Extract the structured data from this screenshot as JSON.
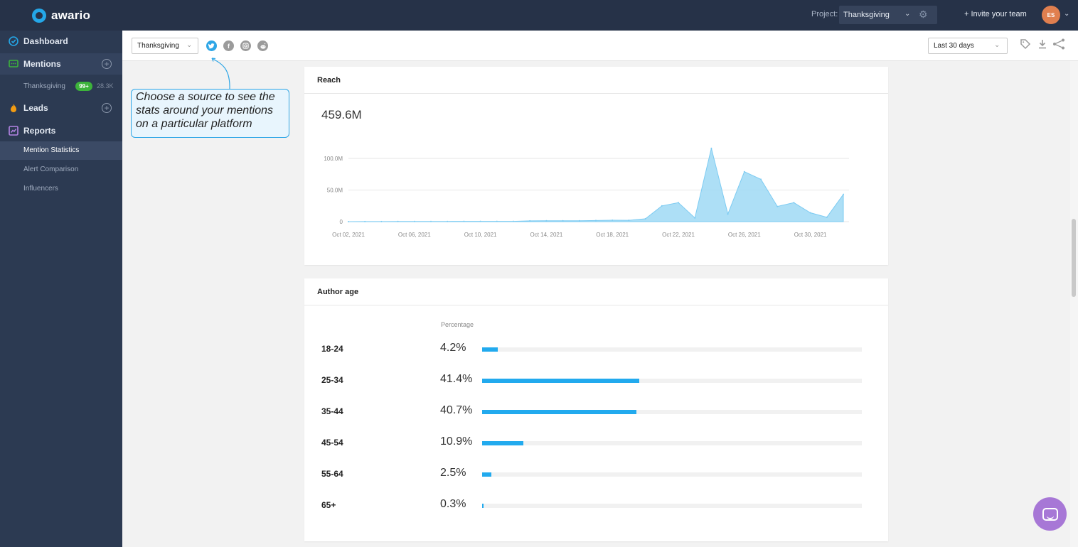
{
  "app": {
    "name": "awario"
  },
  "topbar": {
    "project_label": "Project:",
    "project_value": "Thanksgiving",
    "invite_label": "+ Invite your team",
    "avatar_initials": "ES"
  },
  "sidebar": {
    "dashboard": "Dashboard",
    "mentions": "Mentions",
    "mentions_alert": {
      "label": "Thanksgiving",
      "badge": "99+",
      "count": "28.3K"
    },
    "leads": "Leads",
    "reports": "Reports",
    "report_items": [
      "Mention Statistics",
      "Alert Comparison",
      "Influencers"
    ]
  },
  "filterbar": {
    "alert_select": "Thanksgiving",
    "date_range": "Last 30 days"
  },
  "tooltip": {
    "lines": [
      "Choose a source to see the",
      "stats around your mentions",
      "on a particular platform"
    ]
  },
  "reach": {
    "title": "Reach",
    "total": "459.6M"
  },
  "chart_data": {
    "type": "area",
    "title": "Reach",
    "x_labels": [
      "Oct 02, 2021",
      "Oct 06, 2021",
      "Oct 10, 2021",
      "Oct 14, 2021",
      "Oct 18, 2021",
      "Oct 22, 2021",
      "Oct 26, 2021",
      "Oct 30, 2021"
    ],
    "y_ticks": [
      "0",
      "50.0M",
      "100.0M"
    ],
    "ylim": [
      0,
      100000000
    ],
    "x": [
      "Oct 02",
      "Oct 03",
      "Oct 04",
      "Oct 05",
      "Oct 06",
      "Oct 07",
      "Oct 08",
      "Oct 09",
      "Oct 10",
      "Oct 11",
      "Oct 12",
      "Oct 13",
      "Oct 14",
      "Oct 15",
      "Oct 16",
      "Oct 17",
      "Oct 18",
      "Oct 19",
      "Oct 20",
      "Oct 21",
      "Oct 22",
      "Oct 23",
      "Oct 24",
      "Oct 25",
      "Oct 26",
      "Oct 27",
      "Oct 28",
      "Oct 29",
      "Oct 30",
      "Oct 31",
      "Nov 01"
    ],
    "values": [
      0,
      100000,
      100000,
      200000,
      200000,
      300000,
      300000,
      400000,
      400000,
      500000,
      500000,
      1200000,
      1500000,
      1400000,
      1400000,
      1800000,
      2200000,
      2100000,
      4500000,
      25000000,
      30000000,
      6000000,
      116000000,
      12000000,
      79000000,
      67000000,
      24000000,
      30000000,
      14000000,
      7000000,
      43000000
    ],
    "grid": true,
    "color": "#9fd9f5"
  },
  "author_age": {
    "title": "Author age",
    "column_label": "Percentage",
    "rows": [
      {
        "group": "18-24",
        "pct_label": "4.2%",
        "value": 4.2
      },
      {
        "group": "25-34",
        "pct_label": "41.4%",
        "value": 41.4
      },
      {
        "group": "35-44",
        "pct_label": "40.7%",
        "value": 40.7
      },
      {
        "group": "45-54",
        "pct_label": "10.9%",
        "value": 10.9
      },
      {
        "group": "55-64",
        "pct_label": "2.5%",
        "value": 2.5
      },
      {
        "group": "65+",
        "pct_label": "0.3%",
        "value": 0.3
      }
    ]
  },
  "icons": {
    "sources": [
      "twitter-icon",
      "facebook-icon",
      "instagram-icon",
      "reddit-icon"
    ],
    "tools": [
      "tag-icon",
      "download-icon",
      "share-icon"
    ]
  },
  "colors": {
    "accent": "#22aaee",
    "nav_bg": "#2c3a52",
    "topbar_bg": "#263248",
    "badge": "#3db33b"
  }
}
